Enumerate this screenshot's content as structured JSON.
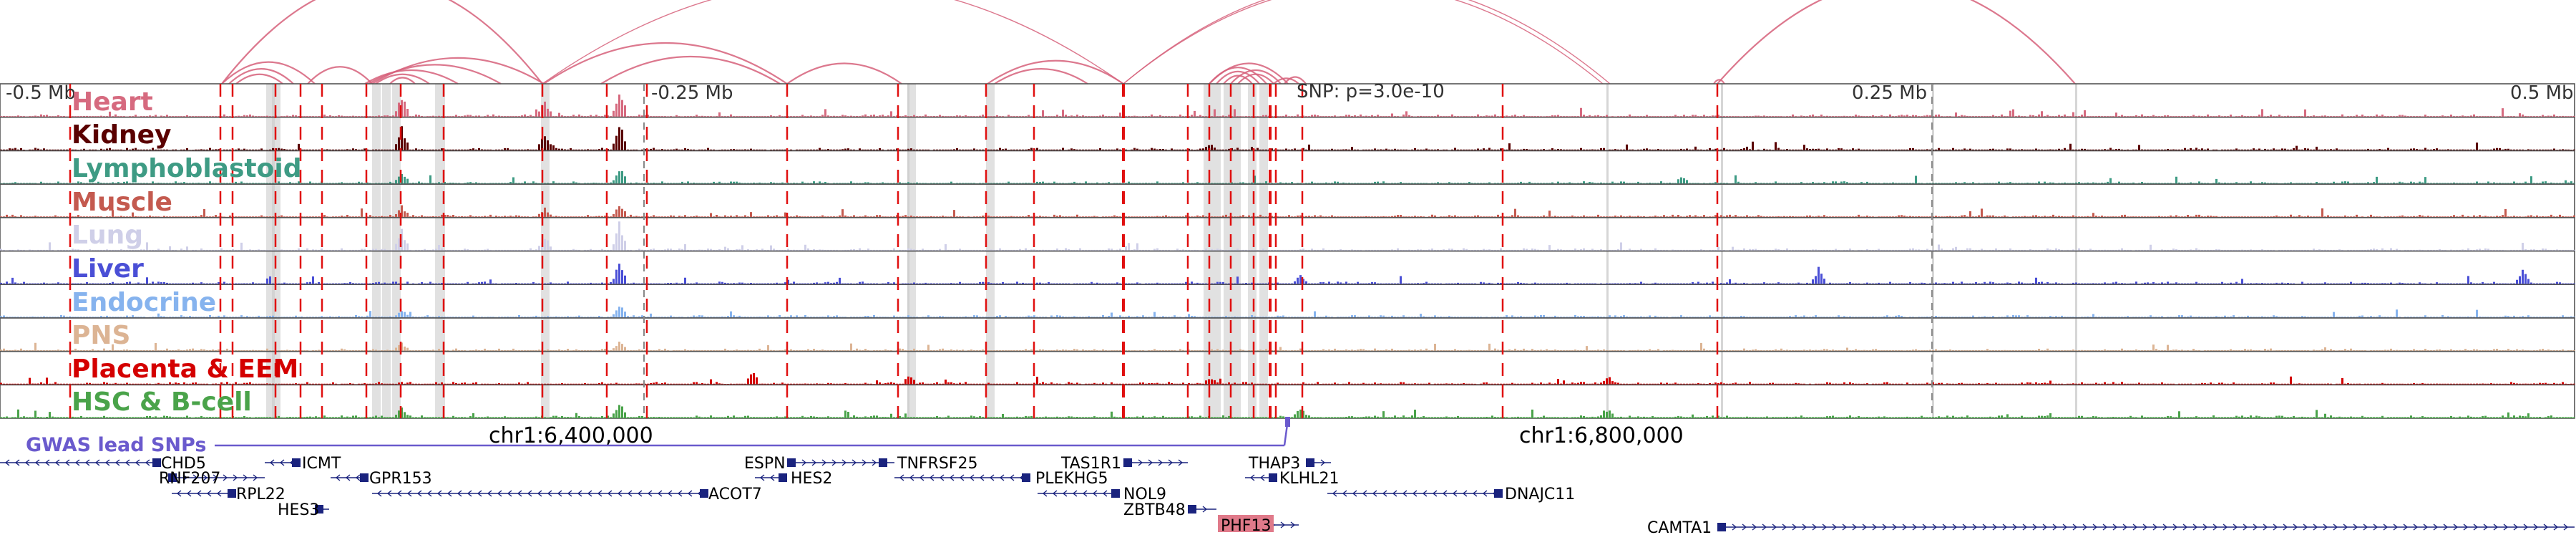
{
  "colors": {
    "tissues": [
      "#d66a7f",
      "#5a0000",
      "#3e9b84",
      "#c45a4f",
      "#cfcfe8",
      "#4a4fd6",
      "#86b3ee",
      "#dcb494",
      "#d40000",
      "#4aa34a"
    ],
    "arc": "#d6607a",
    "gwas": "#6a5acd",
    "gene": "#1a237e",
    "dashed": "#e01010",
    "highlight_gene_bg": "#e07a8a"
  },
  "tracks": [
    {
      "name": "Heart"
    },
    {
      "name": "Kidney"
    },
    {
      "name": "Lymphoblastoid"
    },
    {
      "name": "Muscle"
    },
    {
      "name": "Lung"
    },
    {
      "name": "Liver"
    },
    {
      "name": "Endocrine"
    },
    {
      "name": "PNS"
    },
    {
      "name": "Placenta & EEM"
    },
    {
      "name": "HSC & B-cell"
    }
  ],
  "axis": {
    "offsets": [
      "-0.5 Mb",
      "-0.25 Mb",
      "0.25 Mb",
      "0.5 Mb"
    ],
    "snp_label": "SNP: p=3.0e-10",
    "coordinates": [
      "chr1:6,400,000",
      "chr1:6,800,000"
    ]
  },
  "gwas": {
    "label": "GWAS lead SNPs"
  },
  "genes": [
    {
      "name": "CHD5"
    },
    {
      "name": "RNF207"
    },
    {
      "name": "RPL22"
    },
    {
      "name": "HES3"
    },
    {
      "name": "ICMT"
    },
    {
      "name": "GPR153"
    },
    {
      "name": "ACOT7"
    },
    {
      "name": "ESPN"
    },
    {
      "name": "HES2"
    },
    {
      "name": "TNFRSF25"
    },
    {
      "name": "PLEKHG5"
    },
    {
      "name": "TAS1R1"
    },
    {
      "name": "NOL9"
    },
    {
      "name": "ZBTB48"
    },
    {
      "name": "PHF13"
    },
    {
      "name": "THAP3"
    },
    {
      "name": "KLHL21"
    },
    {
      "name": "DNAJC11"
    },
    {
      "name": "CAMTA1"
    }
  ]
}
